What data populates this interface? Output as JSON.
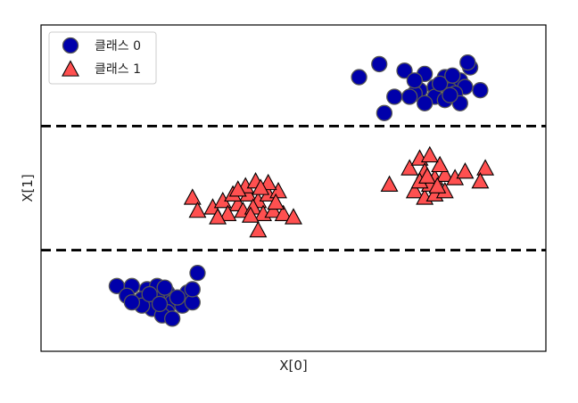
{
  "chart_data": {
    "type": "scatter",
    "xlabel": "X[0]",
    "ylabel": "X[1]",
    "xlim": [
      0,
      10
    ],
    "ylim": [
      0,
      10
    ],
    "grid": false,
    "legend_position": "top-left",
    "ticks_visible": false,
    "separator_lines": {
      "style": "dashed",
      "color": "#000000",
      "y_values": [
        6.9,
        3.1
      ]
    },
    "series": [
      {
        "name": "클래스 0",
        "marker": "circle",
        "color": "#0000aa",
        "edge_color": "#555555",
        "points": [
          [
            6.3,
            8.4
          ],
          [
            6.7,
            8.8
          ],
          [
            7.2,
            8.6
          ],
          [
            7.6,
            8.5
          ],
          [
            8.0,
            8.4
          ],
          [
            8.5,
            8.7
          ],
          [
            8.3,
            8.3
          ],
          [
            7.5,
            8.0
          ],
          [
            7.8,
            8.1
          ],
          [
            8.1,
            8.0
          ],
          [
            8.4,
            8.1
          ],
          [
            8.7,
            8.0
          ],
          [
            8.2,
            7.9
          ],
          [
            7.4,
            7.9
          ],
          [
            7.0,
            7.8
          ],
          [
            7.8,
            7.8
          ],
          [
            8.0,
            7.7
          ],
          [
            8.3,
            7.6
          ],
          [
            7.6,
            7.6
          ],
          [
            7.3,
            7.8
          ],
          [
            6.8,
            7.3
          ],
          [
            7.4,
            8.3
          ],
          [
            7.9,
            8.2
          ],
          [
            8.15,
            8.45
          ],
          [
            8.45,
            8.85
          ],
          [
            8.1,
            7.85
          ],
          [
            1.5,
            2.0
          ],
          [
            1.8,
            2.0
          ],
          [
            2.1,
            1.9
          ],
          [
            2.3,
            2.0
          ],
          [
            2.5,
            1.8
          ],
          [
            1.7,
            1.7
          ],
          [
            2.0,
            1.6
          ],
          [
            2.3,
            1.6
          ],
          [
            2.6,
            1.5
          ],
          [
            2.8,
            1.4
          ],
          [
            2.2,
            1.3
          ],
          [
            2.5,
            1.2
          ],
          [
            2.0,
            1.4
          ],
          [
            1.8,
            1.5
          ],
          [
            2.4,
            1.1
          ],
          [
            2.6,
            1.0
          ],
          [
            2.9,
            1.8
          ],
          [
            3.0,
            1.5
          ],
          [
            3.1,
            2.4
          ],
          [
            3.0,
            1.9
          ],
          [
            2.15,
            1.75
          ],
          [
            2.35,
            1.45
          ],
          [
            2.7,
            1.65
          ],
          [
            2.45,
            1.95
          ]
        ]
      },
      {
        "name": "클래스 1",
        "marker": "triangle",
        "color": "#ff5050",
        "edge_color": "#000000",
        "points": [
          [
            3.0,
            4.7
          ],
          [
            3.1,
            4.3
          ],
          [
            3.4,
            4.4
          ],
          [
            3.6,
            4.6
          ],
          [
            3.9,
            4.5
          ],
          [
            4.1,
            4.8
          ],
          [
            4.3,
            4.6
          ],
          [
            4.5,
            4.8
          ],
          [
            4.7,
            4.9
          ],
          [
            3.7,
            4.2
          ],
          [
            4.0,
            4.3
          ],
          [
            4.2,
            4.4
          ],
          [
            4.4,
            4.2
          ],
          [
            4.6,
            4.3
          ],
          [
            4.8,
            4.2
          ],
          [
            5.0,
            4.1
          ],
          [
            3.5,
            4.1
          ],
          [
            4.3,
            3.7
          ],
          [
            3.8,
            4.8
          ],
          [
            4.05,
            5.05
          ],
          [
            4.25,
            5.2
          ],
          [
            4.5,
            5.15
          ],
          [
            4.65,
            4.55
          ],
          [
            3.9,
            4.95
          ],
          [
            4.15,
            4.15
          ],
          [
            4.35,
            5.0
          ],
          [
            6.9,
            5.1
          ],
          [
            7.3,
            5.6
          ],
          [
            7.5,
            5.9
          ],
          [
            7.6,
            5.5
          ],
          [
            7.8,
            5.3
          ],
          [
            8.0,
            5.4
          ],
          [
            8.2,
            5.3
          ],
          [
            8.4,
            5.5
          ],
          [
            8.8,
            5.6
          ],
          [
            8.7,
            5.2
          ],
          [
            7.4,
            4.9
          ],
          [
            7.6,
            4.7
          ],
          [
            7.8,
            4.8
          ],
          [
            8.0,
            4.9
          ],
          [
            7.7,
            5.1
          ],
          [
            7.9,
            5.7
          ],
          [
            7.7,
            6.0
          ],
          [
            7.5,
            5.2
          ],
          [
            7.65,
            5.35
          ],
          [
            7.85,
            5.05
          ]
        ]
      }
    ]
  }
}
